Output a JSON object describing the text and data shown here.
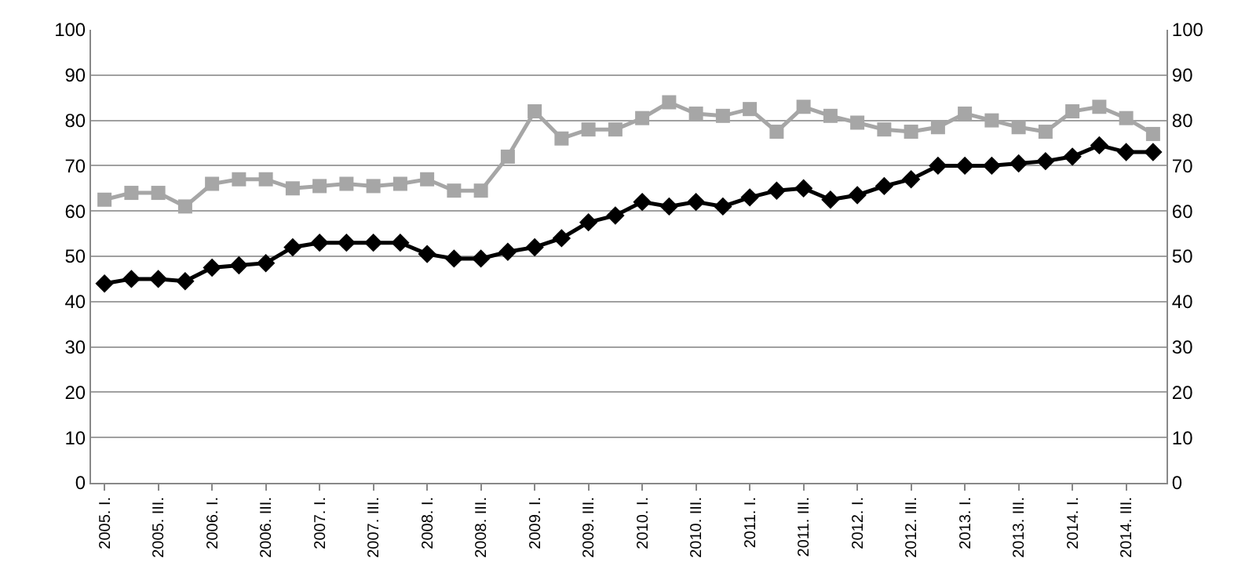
{
  "chart_data": {
    "type": "line",
    "categories": [
      "2005. I.",
      null,
      "2005. III.",
      null,
      "2006. I.",
      null,
      "2006. III.",
      null,
      "2007. I.",
      null,
      "2007. III.",
      null,
      "2008. I.",
      null,
      "2008. III.",
      null,
      "2009. I.",
      null,
      "2009. III.",
      null,
      "2010. I.",
      null,
      "2010. III.",
      null,
      "2011. I.",
      null,
      "2011. III.",
      null,
      "2012. I.",
      null,
      "2012. III.",
      null,
      "2013. I.",
      null,
      "2013. III.",
      null,
      "2014. I.",
      null,
      "2014. III.",
      null
    ],
    "series": [
      {
        "color": "#a6a6a6",
        "marker": "square",
        "values": [
          62.5,
          64,
          64,
          61,
          66,
          67,
          67,
          65,
          65.5,
          66,
          65.5,
          66,
          67,
          64.5,
          64.5,
          72,
          82,
          76,
          78,
          78,
          80.5,
          84,
          81.5,
          81,
          82.5,
          77.5,
          83,
          81,
          79.5,
          78,
          77.5,
          78.5,
          81.5,
          80,
          78.5,
          77.5,
          82,
          83,
          80.5,
          77
        ]
      },
      {
        "color": "#000000",
        "marker": "diamond",
        "values": [
          44,
          45,
          45,
          44.5,
          47.5,
          48,
          48.5,
          52,
          53,
          53,
          53,
          53,
          50.5,
          49.5,
          49.5,
          51,
          52,
          54,
          57.5,
          59,
          62,
          61,
          62,
          61,
          63,
          64.5,
          65,
          62.5,
          63.5,
          65.5,
          67,
          70,
          70,
          70,
          70.5,
          71,
          72,
          74.5,
          73,
          73
        ]
      }
    ],
    "ylim": [
      0,
      100
    ],
    "yticks": [
      0,
      10,
      20,
      30,
      40,
      50,
      60,
      70,
      80,
      90,
      100
    ],
    "y2lim": [
      0,
      100
    ],
    "y2ticks": [
      0,
      10,
      20,
      30,
      40,
      50,
      60,
      70,
      80,
      90,
      100
    ],
    "grid": "y",
    "line_style": "solid"
  }
}
